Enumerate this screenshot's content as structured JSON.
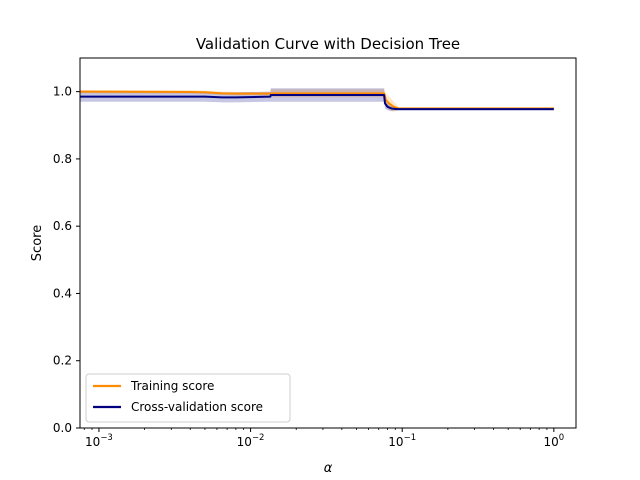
{
  "chart_data": {
    "type": "line",
    "title": "Validation Curve with Decision Tree",
    "xlabel": "α",
    "ylabel": "Score",
    "xscale": "log",
    "xlim": [
      0.00075,
      1.4
    ],
    "ylim": [
      0.0,
      1.1
    ],
    "grid": false,
    "legend_position": "lower-left",
    "x_ticks": [
      {
        "value": 0.001,
        "base": "10",
        "exp": "−3"
      },
      {
        "value": 0.01,
        "base": "10",
        "exp": "−2"
      },
      {
        "value": 0.1,
        "base": "10",
        "exp": "−1"
      },
      {
        "value": 1.0,
        "base": "10",
        "exp": "0"
      }
    ],
    "y_ticks": [
      "0.0",
      "0.2",
      "0.4",
      "0.6",
      "0.8",
      "1.0"
    ],
    "series": [
      {
        "name": "Training score",
        "color": "#ff8c00",
        "x": [
          0.00075,
          0.004,
          0.005,
          0.0065,
          0.008,
          0.0135,
          0.0136,
          0.076,
          0.078,
          0.082,
          0.088,
          0.095,
          1.0
        ],
        "y": [
          1.0,
          0.999,
          0.998,
          0.995,
          0.994,
          0.994,
          0.995,
          0.995,
          0.975,
          0.965,
          0.955,
          0.95,
          0.95
        ],
        "band": [
          0.005,
          0.005,
          0.005,
          0.005,
          0.005,
          0.005,
          0.012,
          0.012,
          0.02,
          0.02,
          0.015,
          0.004,
          0.004
        ]
      },
      {
        "name": "Cross-validation score",
        "color": "#000080",
        "x": [
          0.00075,
          0.005,
          0.0065,
          0.008,
          0.0135,
          0.0136,
          0.076,
          0.077,
          0.08,
          0.085,
          0.092,
          1.0
        ],
        "y": [
          0.985,
          0.985,
          0.983,
          0.983,
          0.985,
          0.99,
          0.99,
          0.965,
          0.955,
          0.95,
          0.948,
          0.948
        ],
        "band": [
          0.015,
          0.015,
          0.015,
          0.015,
          0.015,
          0.02,
          0.02,
          0.015,
          0.01,
          0.008,
          0.004,
          0.004
        ]
      }
    ]
  }
}
